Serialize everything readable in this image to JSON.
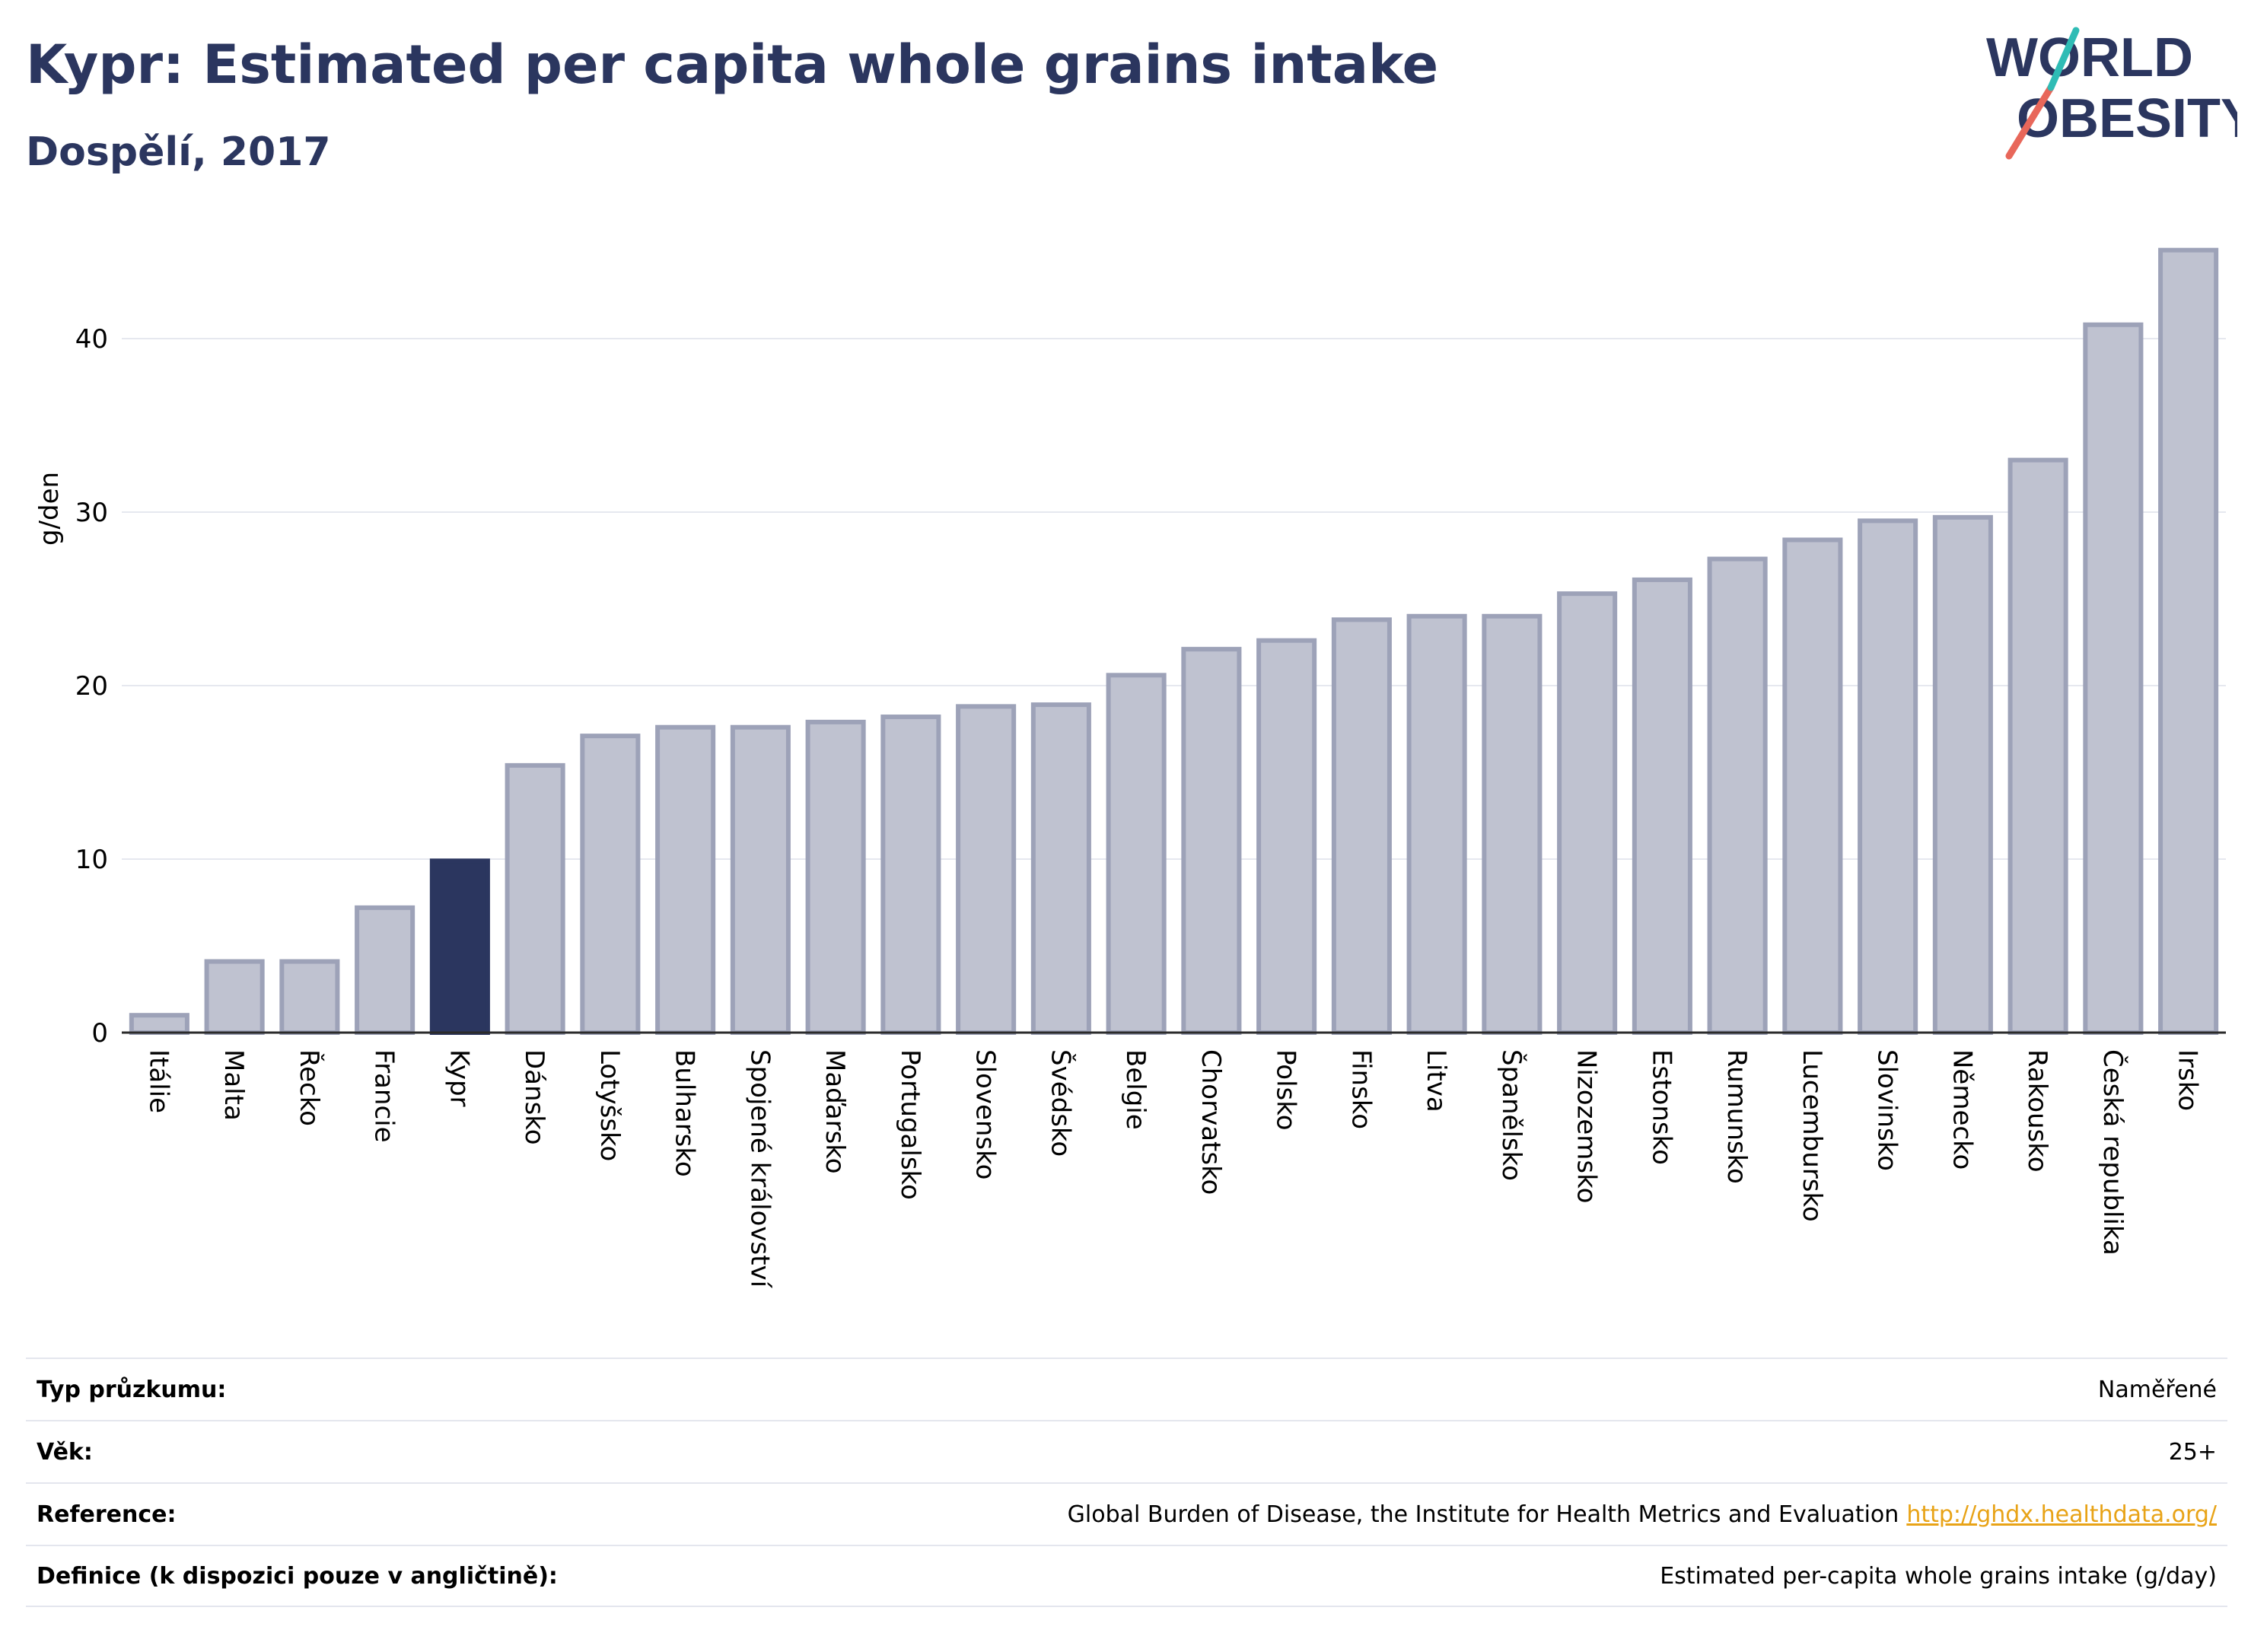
{
  "title": "Kypr: Estimated per capita whole grains intake",
  "subtitle": "Dospělí, 2017",
  "logo": {
    "line1": "WORLD",
    "line2": "OBESITY",
    "accent_colors": [
      "#e8675a",
      "#2fbcb5"
    ]
  },
  "colors": {
    "highlight": "#2b365f",
    "bar": "#bfc2d0",
    "bar_edge": "#9da2b8",
    "title": "#2b365f"
  },
  "chart_data": {
    "type": "bar",
    "ylabel": "g/den",
    "ylim": [
      0,
      46
    ],
    "yticks": [
      0,
      10,
      20,
      30,
      40
    ],
    "grid": true,
    "highlight": "Kypr",
    "categories": [
      "Itálie",
      "Malta",
      "Řecko",
      "Francie",
      "Kypr",
      "Dánsko",
      "Lotyšsko",
      "Bulharsko",
      "Spojené království",
      "Maďarsko",
      "Portugalsko",
      "Slovensko",
      "Švédsko",
      "Belgie",
      "Chorvatsko",
      "Polsko",
      "Finsko",
      "Litva",
      "Španělsko",
      "Nizozemsko",
      "Estonsko",
      "Rumunsko",
      "Lucembursko",
      "Slovinsko",
      "Německo",
      "Rakousko",
      "Česká republika",
      "Irsko"
    ],
    "values": [
      1.0,
      4.1,
      4.1,
      7.2,
      9.9,
      15.4,
      17.1,
      17.6,
      17.6,
      17.9,
      18.2,
      18.8,
      18.9,
      20.6,
      22.1,
      22.6,
      23.8,
      24.0,
      24.0,
      25.3,
      26.1,
      27.3,
      28.4,
      29.5,
      29.7,
      33.0,
      40.8,
      45.1
    ]
  },
  "footer": {
    "rows": [
      {
        "label": "Typ průzkumu:",
        "value": "Naměřené"
      },
      {
        "label": "Věk:",
        "value": "25+"
      },
      {
        "label": "Reference:",
        "value": "Global Burden of Disease, the Institute for Health Metrics and Evaluation",
        "link": "http://ghdx.healthdata.org/"
      },
      {
        "label": "Definice (k dispozici pouze v angličtině):",
        "value": "Estimated per-capita whole grains intake (g/day)"
      }
    ]
  }
}
